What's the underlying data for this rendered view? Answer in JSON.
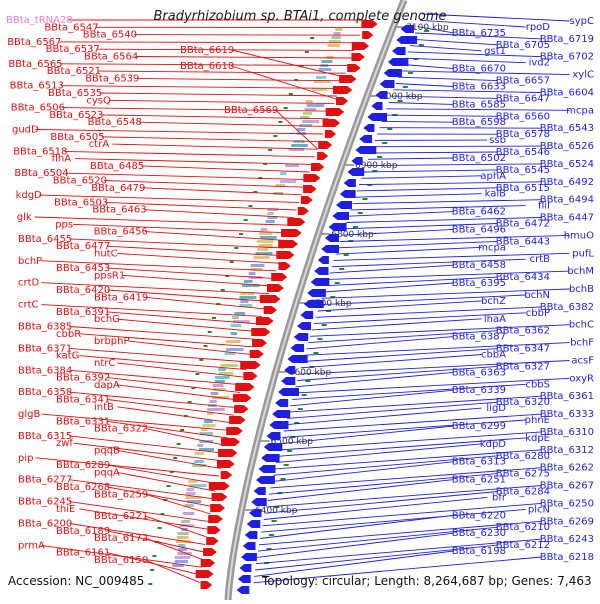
{
  "title": "Bradyrhizobium sp. BTAi1, complete genome",
  "footer": {
    "accession": "Accession: NC_009485",
    "summary": "Topology: circular; Length: 8,264,687 bp; Genes: 7,463"
  },
  "colors": {
    "forward": "#e01010",
    "reverse": "#1f1fe0",
    "rna": "#f07ad8",
    "backbone": "#9a9a9a",
    "tick": "#1e8f1e"
  },
  "ruler": [
    {
      "label": "7100 kbp"
    },
    {
      "label": "7000 kbp"
    },
    {
      "label": "6900 kbp"
    },
    {
      "label": "6800 kbp"
    },
    {
      "label": "6700 kbp"
    },
    {
      "label": "6600 kbp"
    },
    {
      "label": "6500 kbp"
    },
    {
      "label": "6400 kbp"
    }
  ],
  "left_labels": [
    "BBta_tRNA28",
    "BBta_6547",
    "BBta_6540",
    "BBta_6567",
    "BBta_6537",
    "BBta_6564",
    "BBta_6565",
    "BBta_6521",
    "BBta_6539",
    "BBta_6513",
    "BBta_6535",
    "cysQ",
    "BBta_6506",
    "BBta_6523",
    "BBta_6548",
    "gudD",
    "BBta_6505",
    "ctrA",
    "BBta_6518",
    "flhA",
    "BBta_6485",
    "BBta_6504",
    "BBta_6520",
    "BBta_6479",
    "kdgD",
    "BBta_6503",
    "BBta_6463",
    "glk",
    "pps",
    "BBta_6456",
    "BBta_6455",
    "BBta_6477",
    "hutC",
    "bchP",
    "BBta_6453",
    "ppsR1",
    "crtD",
    "BBta_6420",
    "BBta_6419",
    "crtC",
    "BBta_6391",
    "bchG",
    "BBta_6385",
    "cbbR",
    "brbphP",
    "BBta_6371",
    "katG",
    "ntrC",
    "BBta_6384",
    "BBta_6392",
    "dapA",
    "BBta_6358",
    "BBta_6341",
    "intB",
    "glgB",
    "BBta_6331",
    "BBta_6322",
    "BBta_6315",
    "zwf",
    "pqqB",
    "pip",
    "BBta_6289",
    "pqqA",
    "BBta_6277",
    "BBta_6268",
    "BBta_6259",
    "BBta_6245",
    "thiE",
    "BBta_6221",
    "BBta_6200",
    "BBta_6189",
    "BBta_6172",
    "prmA",
    "BBta_6161",
    "BBta_6150",
    "BBta_6619",
    "BBta_6618",
    "BBta_6569"
  ],
  "right_labels": [
    "sypC",
    "rpoD",
    "BBta_6735",
    "BBta_6719",
    "BBta_6705",
    "gst1",
    "BBta_6702",
    "ivd2",
    "BBta_6670",
    "xylC",
    "BBta_6657",
    "BBta_6633",
    "BBta_6604",
    "BBta_6647",
    "BBta_6585",
    "mcpa",
    "BBta_6560",
    "BBta_6598",
    "BBta_6543",
    "BBta_6578",
    "ssb",
    "BBta_6526",
    "BBta_6546",
    "BBta_6502",
    "BBta_6524",
    "BBta_6545",
    "aphA",
    "BBta_6492",
    "BBta_6515",
    "kaiB",
    "BBta_6494",
    "fliI",
    "BBta_6462",
    "BBta_6447",
    "BBta_6472",
    "BBta_6496",
    "hmuO",
    "BBta_6443",
    "mcpa",
    "pufL",
    "crtB",
    "BBta_6458",
    "bchM",
    "BBta_6434",
    "BBta_6395",
    "bchB",
    "bchN",
    "bchZ",
    "BBta_6382",
    "cbbP",
    "lhaA",
    "bchC",
    "BBta_6362",
    "BBta_6387",
    "bchF",
    "BBta_6347",
    "cbbA",
    "acsF",
    "BBta_6327",
    "BBta_6363",
    "oxyR",
    "cbbS",
    "BBta_6339",
    "BBta_6361",
    "BBta_6320",
    "ligD",
    "BBta_6333",
    "phnE",
    "BBta_6299",
    "BBta_6310",
    "kdpE",
    "kdpD",
    "BBta_6312",
    "BBta_6280",
    "BBta_6313",
    "BBta_6262",
    "BBta_6275",
    "BBta_6251",
    "BBta_6267",
    "BBta_6284",
    "bfr",
    "BBta_6250",
    "plcN",
    "BBta_6220",
    "BBta_6269",
    "BBta_6210",
    "BBta_6230",
    "BBta_6243",
    "BBta_6212",
    "BBta_6198",
    "BBta_6218"
  ]
}
